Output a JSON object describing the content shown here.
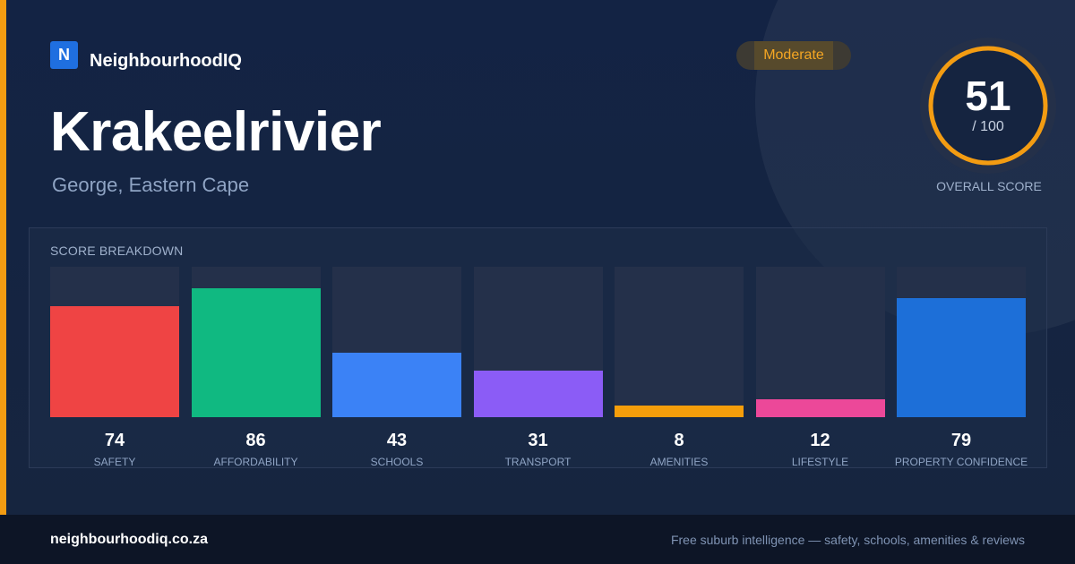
{
  "brand": {
    "logo_letter": "N",
    "name": "NeighbourhoodIQ"
  },
  "suburb": {
    "name": "Krakeelrivier",
    "location": "George, Eastern Cape"
  },
  "rating_badge": {
    "label": "Moderate",
    "color": "#f5a623"
  },
  "overall_score": {
    "value": "51",
    "max_label": "/ 100",
    "score": 51,
    "max": 100,
    "caption": "OVERALL SCORE",
    "ring_color": "#f39c12"
  },
  "breakdown": {
    "title": "SCORE BREAKDOWN"
  },
  "chart_data": {
    "type": "bar",
    "categories": [
      "SAFETY",
      "AFFORDABILITY",
      "SCHOOLS",
      "TRANSPORT",
      "AMENITIES",
      "LIFESTYLE",
      "PROPERTY CONFIDENCE"
    ],
    "values": [
      74,
      86,
      43,
      31,
      8,
      12,
      79
    ],
    "colors": [
      "#ef4444",
      "#10b981",
      "#3b82f6",
      "#8b5cf6",
      "#f59e0b",
      "#ec4899",
      "#1d6fd8"
    ],
    "ylim": [
      0,
      100
    ]
  },
  "footer": {
    "url": "neighbourhoodiq.co.za",
    "tagline": "Free suburb intelligence — safety, schools, amenities & reviews"
  }
}
